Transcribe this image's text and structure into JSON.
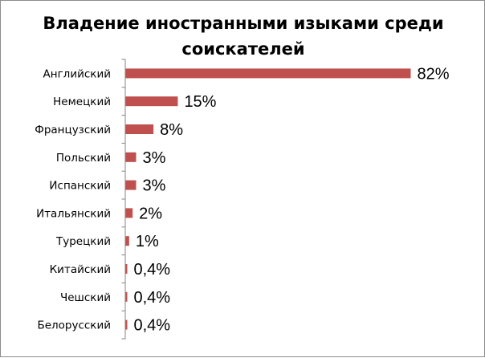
{
  "chart_data": {
    "type": "bar",
    "orientation": "horizontal",
    "title_lines": [
      "Владение иностранными изыками среди",
      "соискателей"
    ],
    "categories": [
      "Английский",
      "Немецкий",
      "Французский",
      "Польский",
      "Испанский",
      "Итальянский",
      "Турецкий",
      "Китайский",
      "Чешский",
      "Белорусский"
    ],
    "values": [
      82,
      15,
      8,
      3,
      3,
      2,
      1,
      0.4,
      0.4,
      0.4
    ],
    "value_labels": [
      "82%",
      "15%",
      "8%",
      "3%",
      "3%",
      "2%",
      "1%",
      "0,4%",
      "0,4%",
      "0,4%"
    ],
    "xlim": [
      0,
      82
    ],
    "bar_color": "#c0504d",
    "legend": "none",
    "grid": false
  }
}
